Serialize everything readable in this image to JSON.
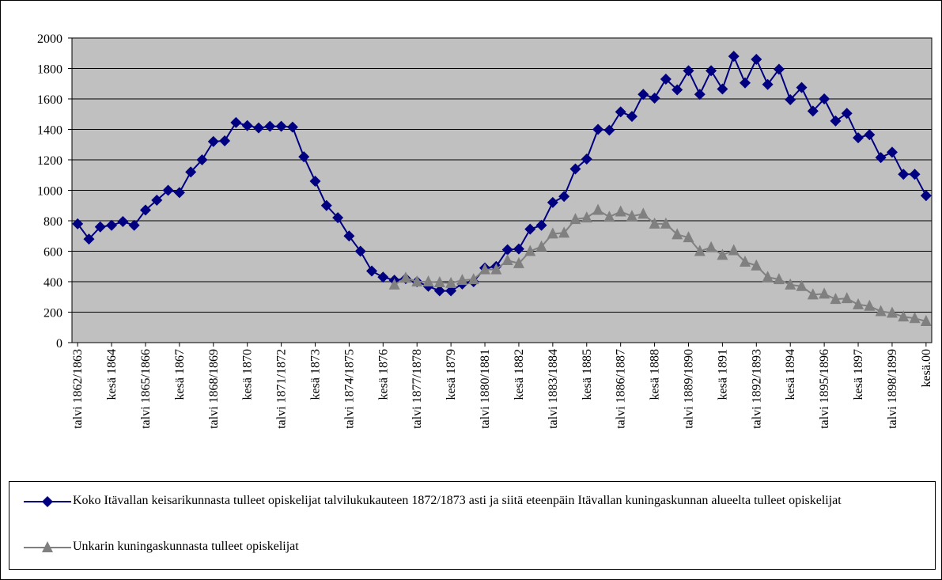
{
  "chart_data": {
    "type": "line",
    "categories": [
      "talvi 1862/1863",
      null,
      null,
      "kesä 1864",
      null,
      null,
      "talvi 1865/1866",
      null,
      null,
      "kesä 1867",
      null,
      null,
      "talvi 1868/1869",
      null,
      null,
      "kesä 1870",
      null,
      null,
      "talvi 1871/1872",
      null,
      null,
      "kesä 1873",
      null,
      null,
      "talvi 1874/1875",
      null,
      null,
      "kesä 1876",
      null,
      null,
      "talvi 1877/1878",
      null,
      null,
      "kesä 1879",
      null,
      null,
      "talvi 1880/1881",
      null,
      null,
      "kesä 1882",
      null,
      null,
      "talvi 1883/1884",
      null,
      null,
      "kesä 1885",
      null,
      null,
      "talvi 1886/1887",
      null,
      null,
      "kesä 1888",
      null,
      null,
      "talvi 1889/1890",
      null,
      null,
      "kesä 1891",
      null,
      null,
      "talvi 1892/1893",
      null,
      null,
      "kesä 1894",
      null,
      null,
      "talvi 1895/1896",
      null,
      null,
      "kesä 1897",
      null,
      null,
      "talvi 1898/1899",
      null,
      null,
      "kesä.00"
    ],
    "series": [
      {
        "name": "Koko Itävallan keisarikunnasta tulleet opiskelijat talvilukukauteen 1872/1873 asti ja siitä eteenpäin Itävallan kuningaskunnan alueelta tulleet opiskelijat",
        "color": "#000080",
        "marker": "diamond",
        "values": [
          780,
          680,
          760,
          770,
          795,
          770,
          870,
          935,
          1000,
          985,
          1120,
          1200,
          1320,
          1325,
          1445,
          1425,
          1410,
          1420,
          1420,
          1415,
          1220,
          1060,
          900,
          820,
          700,
          600,
          470,
          430,
          410,
          420,
          400,
          370,
          340,
          340,
          385,
          400,
          490,
          500,
          610,
          615,
          745,
          770,
          920,
          960,
          1140,
          1205,
          1400,
          1395,
          1515,
          1485,
          1630,
          1605,
          1730,
          1660,
          1785,
          1630,
          1785,
          1665,
          1880,
          1705,
          1860,
          1695,
          1795,
          1595,
          1675,
          1520,
          1600,
          1455,
          1505,
          1345,
          1365,
          1215,
          1250,
          1105,
          1105,
          965
        ]
      },
      {
        "name": "Unkarin kuningaskunnasta tulleet opiskelijat",
        "color": "#808080",
        "marker": "triangle",
        "values": [
          null,
          null,
          null,
          null,
          null,
          null,
          null,
          null,
          null,
          null,
          null,
          null,
          null,
          null,
          null,
          null,
          null,
          null,
          null,
          null,
          null,
          null,
          null,
          null,
          null,
          null,
          null,
          null,
          380,
          425,
          400,
          400,
          395,
          390,
          410,
          415,
          480,
          480,
          540,
          520,
          600,
          630,
          715,
          720,
          810,
          820,
          870,
          825,
          860,
          830,
          845,
          780,
          780,
          710,
          690,
          600,
          625,
          575,
          605,
          530,
          505,
          430,
          415,
          380,
          370,
          315,
          320,
          285,
          290,
          250,
          240,
          205,
          195,
          170,
          160,
          140
        ]
      }
    ],
    "ylim": [
      0,
      2000
    ],
    "yticks": [
      0,
      200,
      400,
      600,
      800,
      1000,
      1200,
      1400,
      1600,
      1800,
      2000
    ],
    "grid": true,
    "plot_background": "#c0c0c0",
    "legend": "bottom"
  }
}
